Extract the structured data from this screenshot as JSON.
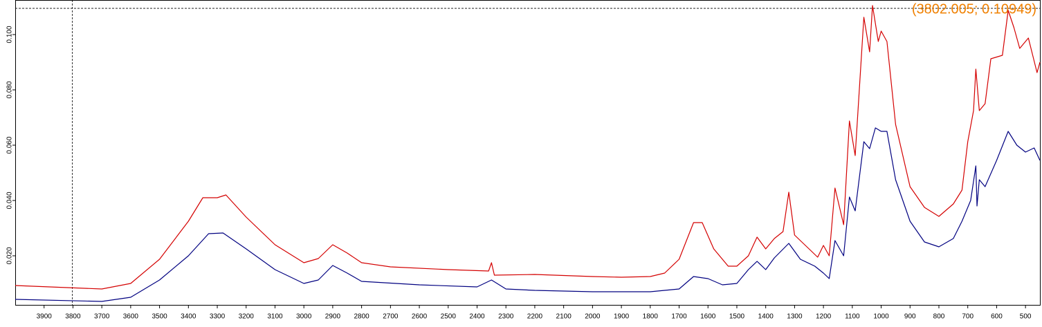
{
  "chart_data": {
    "type": "line",
    "xlim": [
      4000,
      450
    ],
    "ylim": [
      0.00225,
      0.1125
    ],
    "xticks": [
      3900,
      3800,
      3700,
      3600,
      3500,
      3400,
      3300,
      3200,
      3100,
      3000,
      2900,
      2800,
      2700,
      2600,
      2500,
      2400,
      2300,
      2200,
      2100,
      2000,
      1900,
      1800,
      1700,
      1600,
      1500,
      1400,
      1300,
      1200,
      1100,
      1000,
      900,
      800,
      700,
      600,
      500
    ],
    "yticks": [
      {
        "value": 0.02,
        "label": "0.020"
      },
      {
        "value": 0.04,
        "label": "0.040"
      },
      {
        "value": 0.06,
        "label": "0.060"
      },
      {
        "value": 0.08,
        "label": "0.080"
      },
      {
        "value": 0.1,
        "label": "0.100"
      }
    ],
    "series": [
      {
        "color": "#d40000",
        "x": [
          4000,
          3700,
          3600,
          3500,
          3400,
          3350,
          3300,
          3270,
          3200,
          3100,
          3000,
          2950,
          2900,
          2850,
          2800,
          2700,
          2500,
          2360,
          2350,
          2340,
          2200,
          2000,
          1900,
          1800,
          1750,
          1700,
          1650,
          1620,
          1580,
          1530,
          1500,
          1460,
          1430,
          1400,
          1370,
          1340,
          1320,
          1300,
          1250,
          1220,
          1200,
          1180,
          1160,
          1130,
          1110,
          1090,
          1060,
          1040,
          1030,
          1010,
          1000,
          980,
          950,
          900,
          850,
          800,
          750,
          720,
          700,
          680,
          672,
          660,
          640,
          620,
          580,
          560,
          540,
          520,
          490,
          460,
          450
        ],
        "values": [
          0.00925,
          0.008,
          0.01,
          0.01875,
          0.0325,
          0.041,
          0.041,
          0.042,
          0.034,
          0.024,
          0.0175,
          0.019,
          0.024,
          0.021,
          0.0175,
          0.016,
          0.015,
          0.0145,
          0.0175,
          0.013,
          0.01325,
          0.0125,
          0.01225,
          0.0125,
          0.01375,
          0.01875,
          0.032,
          0.032,
          0.0225,
          0.01625,
          0.01625,
          0.02,
          0.02675,
          0.0225,
          0.02625,
          0.02875,
          0.043,
          0.0275,
          0.0225,
          0.0195,
          0.02375,
          0.02,
          0.0445,
          0.03125,
          0.06875,
          0.05625,
          0.10625,
          0.09375,
          0.1105,
          0.0975,
          0.10125,
          0.0975,
          0.0675,
          0.045,
          0.0375,
          0.03425,
          0.03875,
          0.04375,
          0.06125,
          0.0725,
          0.0875,
          0.0725,
          0.075,
          0.09125,
          0.0925,
          0.10875,
          0.1025,
          0.095,
          0.09875,
          0.08625,
          0.09
        ]
      },
      {
        "color": "#000080",
        "x": [
          4000,
          3700,
          3600,
          3500,
          3400,
          3330,
          3280,
          3200,
          3100,
          3000,
          2950,
          2900,
          2850,
          2800,
          2600,
          2400,
          2350,
          2300,
          2200,
          2000,
          1800,
          1700,
          1650,
          1600,
          1550,
          1500,
          1460,
          1430,
          1400,
          1370,
          1320,
          1280,
          1230,
          1200,
          1180,
          1160,
          1130,
          1110,
          1090,
          1060,
          1040,
          1020,
          1000,
          980,
          950,
          900,
          850,
          800,
          750,
          720,
          690,
          672,
          668,
          660,
          640,
          600,
          560,
          530,
          500,
          470,
          450
        ],
        "values": [
          0.00425,
          0.0035,
          0.005,
          0.01125,
          0.02,
          0.028,
          0.02825,
          0.0225,
          0.015,
          0.01,
          0.01125,
          0.0165,
          0.01375,
          0.01075,
          0.0095,
          0.00875,
          0.01125,
          0.008,
          0.0075,
          0.007,
          0.007,
          0.008,
          0.0125,
          0.01175,
          0.0095,
          0.01,
          0.015,
          0.018,
          0.015,
          0.01925,
          0.0245,
          0.01875,
          0.01625,
          0.01375,
          0.01175,
          0.0255,
          0.02,
          0.04125,
          0.03625,
          0.06125,
          0.05875,
          0.06625,
          0.065,
          0.065,
          0.0475,
          0.0325,
          0.025,
          0.02325,
          0.02625,
          0.0325,
          0.04,
          0.0525,
          0.038,
          0.0475,
          0.045,
          0.0545,
          0.065,
          0.06,
          0.0575,
          0.059,
          0.0545
        ]
      }
    ],
    "annotation": {
      "x": 3802.005,
      "y": 0.10949,
      "label": "(3802.005; 0.10949)"
    }
  }
}
